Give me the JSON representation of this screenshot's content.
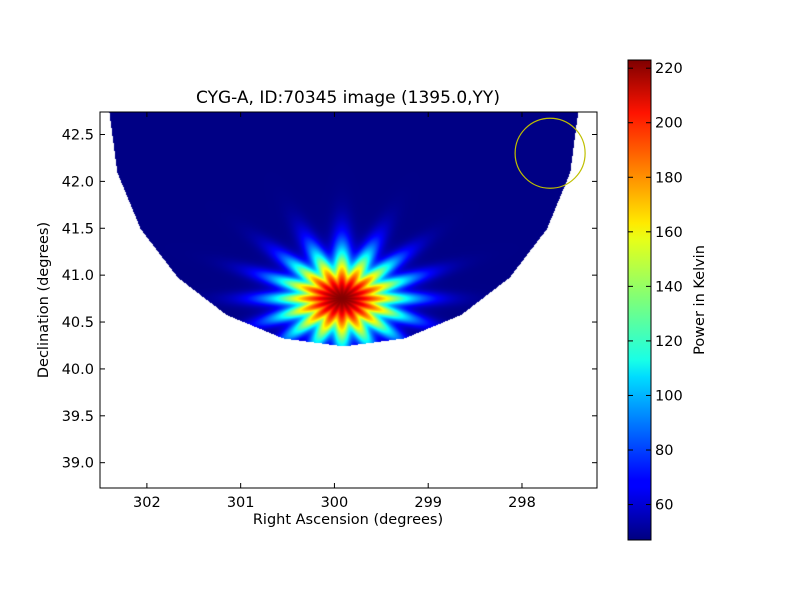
{
  "chart_data": {
    "type": "heatmap",
    "title": "CYG-A, ID:70345 image (1395.0,YY)",
    "xlabel": "Right Ascension (degrees)",
    "ylabel": "Declination (degrees)",
    "xlim": [
      302.5,
      297.2
    ],
    "ylim": [
      38.73,
      42.74
    ],
    "x_ticks": [
      302,
      301,
      300,
      299,
      298
    ],
    "x_tick_labels": [
      "302",
      "301",
      "300",
      "299",
      "298"
    ],
    "y_ticks": [
      39.0,
      39.5,
      40.0,
      40.5,
      41.0,
      41.5,
      42.0,
      42.5
    ],
    "y_tick_labels": [
      "39.0",
      "39.5",
      "40.0",
      "40.5",
      "41.0",
      "41.5",
      "42.0",
      "42.5"
    ],
    "grid": false,
    "colormap": "jet",
    "colorbar": {
      "label": "Power in Kelvin",
      "min": 47,
      "max": 223,
      "ticks": [
        60,
        80,
        100,
        120,
        140,
        160,
        180,
        200,
        220
      ],
      "tick_labels": [
        "60",
        "80",
        "100",
        "120",
        "140",
        "160",
        "180",
        "200",
        "220"
      ]
    },
    "field": {
      "center_ra": 299.9,
      "center_dec": 42.74,
      "radius_deg": 2.5,
      "background_kelvin": 48
    },
    "source": {
      "ra": 299.92,
      "dec": 40.75,
      "peak_kelvin": 222,
      "width_ra_deg": 0.42,
      "width_dec_deg": 0.3
    },
    "beam_marker": {
      "ra": 297.7,
      "dec": 42.3,
      "color": "#bfbf00"
    }
  }
}
